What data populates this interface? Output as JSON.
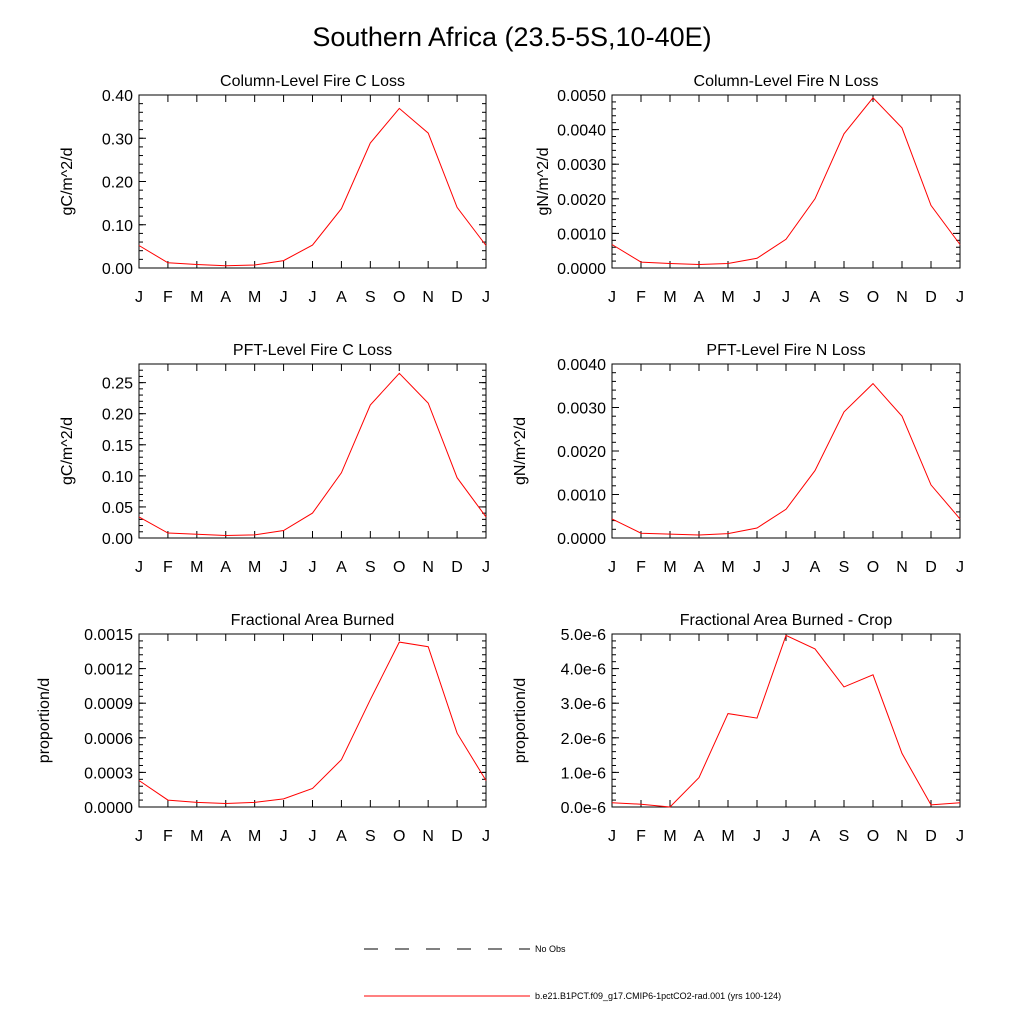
{
  "title": "Southern Africa (23.5-5S,10-40E)",
  "months": [
    "J",
    "F",
    "M",
    "A",
    "M",
    "J",
    "J",
    "A",
    "S",
    "O",
    "N",
    "D",
    "J"
  ],
  "colors": {
    "line": "#ff0000",
    "axis": "#000000",
    "background": "#ffffff"
  },
  "legend": [
    {
      "label": "No Obs",
      "style": "dashed",
      "color": "#000000"
    },
    {
      "label": "b.e21.B1PCT.f09_g17.CMIP6-1pctCO2-rad.001 (yrs 100-124)",
      "style": "solid",
      "color": "#ff0000"
    }
  ],
  "chart_data": [
    {
      "type": "line",
      "title": "Column-Level Fire C Loss",
      "ylabel": "gC/m^2/d",
      "ylim": [
        0,
        0.4
      ],
      "yticks": [
        "0.00",
        "0.10",
        "0.20",
        "0.30",
        "0.40"
      ],
      "series": [
        {
          "values": [
            0.052,
            0.012,
            0.008,
            0.005,
            0.007,
            0.017,
            0.053,
            0.137,
            0.289,
            0.369,
            0.312,
            0.14,
            0.052
          ]
        }
      ]
    },
    {
      "type": "line",
      "title": "Column-Level Fire N Loss",
      "ylabel": "gN/m^2/d",
      "ylim": [
        0,
        0.005
      ],
      "yticks": [
        "0.0000",
        "0.0010",
        "0.0020",
        "0.0030",
        "0.0040",
        "0.0050"
      ],
      "series": [
        {
          "values": [
            0.00068,
            0.00017,
            0.00013,
            0.0001,
            0.00013,
            0.00028,
            0.00083,
            0.002,
            0.00388,
            0.00492,
            0.00405,
            0.00181,
            0.00068
          ]
        }
      ]
    },
    {
      "type": "line",
      "title": "PFT-Level Fire C Loss",
      "ylabel": "gC/m^2/d",
      "ylim": [
        0,
        0.28
      ],
      "yticks": [
        "0.00",
        "0.05",
        "0.10",
        "0.15",
        "0.20",
        "0.25"
      ],
      "series": [
        {
          "values": [
            0.034,
            0.008,
            0.006,
            0.004,
            0.005,
            0.012,
            0.04,
            0.105,
            0.214,
            0.265,
            0.217,
            0.097,
            0.034
          ]
        }
      ]
    },
    {
      "type": "line",
      "title": "PFT-Level Fire N Loss",
      "ylabel": "gN/m^2/d",
      "ylim": [
        0,
        0.004
      ],
      "yticks": [
        "0.0000",
        "0.0010",
        "0.0020",
        "0.0030",
        "0.0040"
      ],
      "series": [
        {
          "values": [
            0.00044,
            0.00011,
            9e-05,
            7e-05,
            0.0001,
            0.00023,
            0.00066,
            0.00155,
            0.0029,
            0.00355,
            0.0028,
            0.00122,
            0.00044
          ]
        }
      ]
    },
    {
      "type": "line",
      "title": "Fractional Area Burned",
      "ylabel": "proportion/d",
      "ylim": [
        0,
        0.0015
      ],
      "yticks": [
        "0.0000",
        "0.0003",
        "0.0006",
        "0.0009",
        "0.0012",
        "0.0015"
      ],
      "series": [
        {
          "values": [
            0.00023,
            6e-05,
            4e-05,
            3e-05,
            4e-05,
            7e-05,
            0.00016,
            0.00041,
            0.00093,
            0.00143,
            0.00139,
            0.00064,
            0.00023
          ]
        }
      ]
    },
    {
      "type": "line",
      "title": "Fractional Area Burned - Crop",
      "ylabel": "proportion/d",
      "ylim": [
        0,
        5e-06
      ],
      "yticks": [
        "0.0e-6",
        "1.0e-6",
        "2.0e-6",
        "3.0e-6",
        "4.0e-6",
        "5.0e-6"
      ],
      "series": [
        {
          "values": [
            1.2e-07,
            8e-08,
            0,
            8.5e-07,
            2.7e-06,
            2.57e-06,
            4.96e-06,
            4.57e-06,
            3.47e-06,
            3.82e-06,
            1.55e-06,
            6e-08,
            1.2e-07
          ]
        }
      ]
    }
  ]
}
